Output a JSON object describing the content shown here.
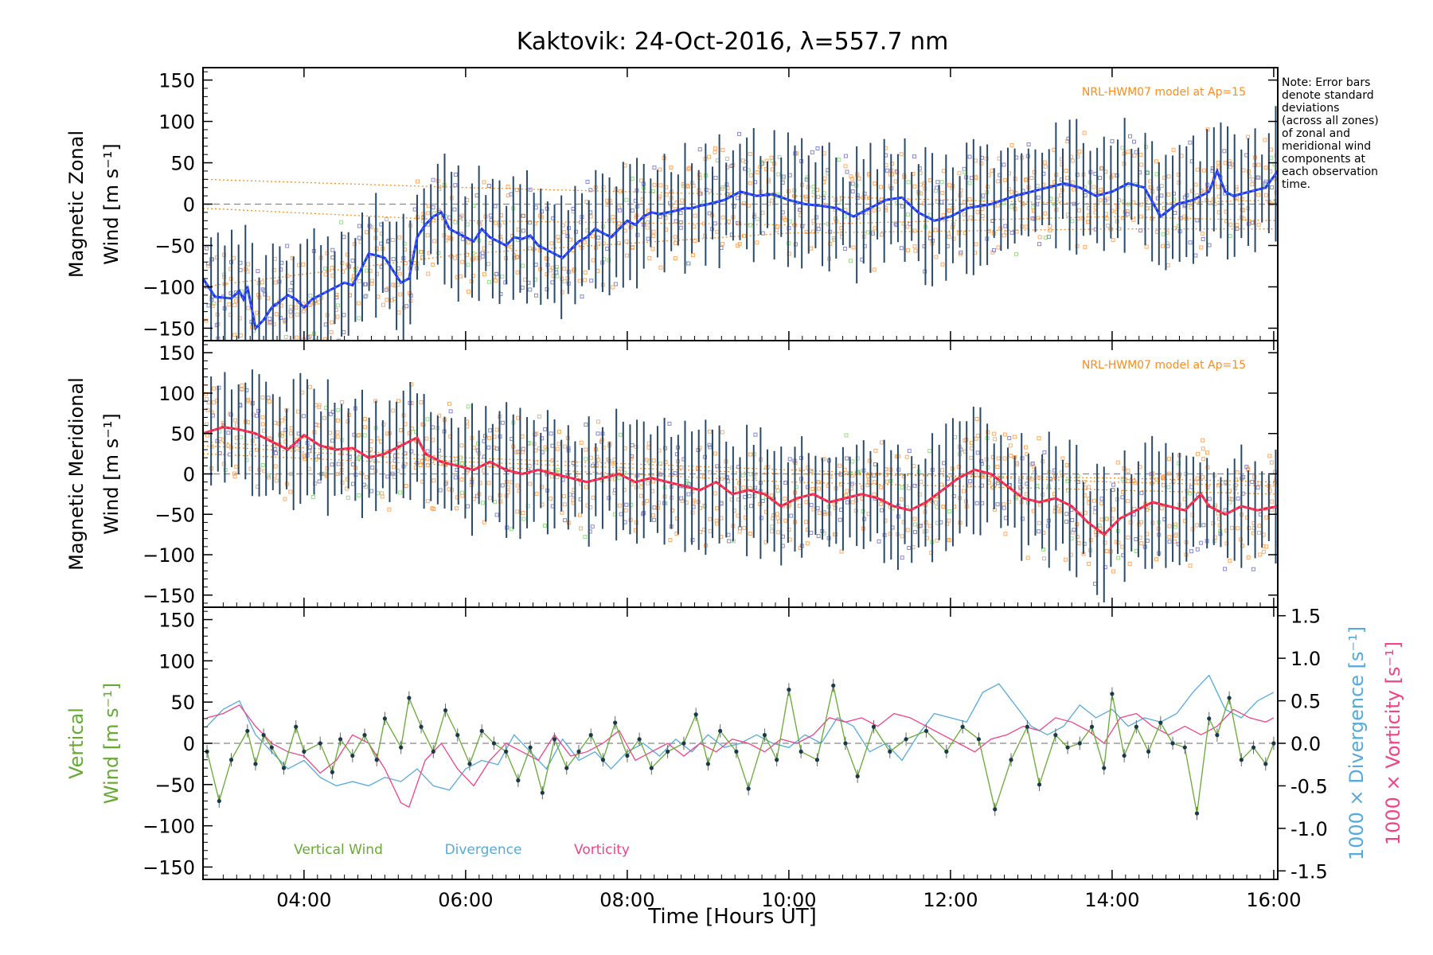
{
  "title": "Kaktovik: 24-Oct-2016, λ=557.7 nm",
  "note": [
    "Note: Error bars",
    "denote standard",
    "deviations",
    "(across all zones)",
    "of zonal and",
    "meridional wind",
    "components at",
    "each observation",
    "time."
  ],
  "model_label": "NRL-HWM07 model at Ap=15",
  "xlabel": "Time [Hours UT]",
  "colors": {
    "zonal_mean": "#2233ee",
    "zonal_mean_light": "#44aaee",
    "meridional_mean": "#ee2244",
    "meridional_mean_light": "#ff6688",
    "errorbar": "#2a4a6a",
    "model": "#ff8c1a",
    "scatter_orange": "#ffaa66",
    "scatter_blue": "#8888cc",
    "scatter_green": "#99dd88",
    "vertical": "#66aa33",
    "divergence": "#55aadd",
    "vorticity": "#ee4488",
    "zero_line": "#888888"
  },
  "chart_data": [
    {
      "type": "line",
      "panel": "zonal",
      "ylabel_lines": [
        "Magnetic Zonal",
        "Wind [m s⁻¹]"
      ],
      "xlim": [
        2.75,
        16.05
      ],
      "ylim": [
        -165,
        165
      ],
      "x_ticks": [
        4,
        6,
        8,
        10,
        12,
        14,
        16
      ],
      "y_ticks": [
        -150,
        -100,
        -50,
        0,
        50,
        100,
        150
      ],
      "series": [
        {
          "kind": "mean_wind",
          "x": [
            2.75,
            2.9,
            3.1,
            3.2,
            3.25,
            3.3,
            3.4,
            3.5,
            3.6,
            3.7,
            3.8,
            3.9,
            4.0,
            4.1,
            4.2,
            4.3,
            4.4,
            4.5,
            4.6,
            4.7,
            4.8,
            4.9,
            5.0,
            5.1,
            5.2,
            5.3,
            5.4,
            5.5,
            5.6,
            5.7,
            5.8,
            5.9,
            6.0,
            6.1,
            6.2,
            6.3,
            6.4,
            6.5,
            6.6,
            6.7,
            6.8,
            6.9,
            7.0,
            7.1,
            7.2,
            7.3,
            7.4,
            7.5,
            7.6,
            7.7,
            7.8,
            7.9,
            8.0,
            8.1,
            8.2,
            8.3,
            8.4,
            8.5,
            8.6,
            8.7,
            8.8,
            8.9,
            9.0,
            9.2,
            9.4,
            9.6,
            9.8,
            10.0,
            10.2,
            10.4,
            10.6,
            10.8,
            11.0,
            11.2,
            11.4,
            11.6,
            11.8,
            12.0,
            12.1,
            12.2,
            12.5,
            12.8,
            13.0,
            13.2,
            13.4,
            13.6,
            13.8,
            14.0,
            14.2,
            14.4,
            14.6,
            14.8,
            15.0,
            15.1,
            15.2,
            15.3,
            15.4,
            15.5,
            15.7,
            15.9,
            16.05
          ],
          "y": [
            -90,
            -112,
            -114,
            -105,
            -115,
            -100,
            -150,
            -140,
            -125,
            -118,
            -110,
            -115,
            -125,
            -115,
            -110,
            -105,
            -100,
            -95,
            -98,
            -80,
            -60,
            -62,
            -65,
            -80,
            -95,
            -90,
            -40,
            -25,
            -15,
            -10,
            -30,
            -35,
            -40,
            -45,
            -30,
            -40,
            -45,
            -50,
            -40,
            -42,
            -38,
            -50,
            -55,
            -60,
            -65,
            -55,
            -45,
            -40,
            -30,
            -35,
            -40,
            -30,
            -20,
            -25,
            -15,
            -10,
            -12,
            -10,
            -8,
            -5,
            -5,
            -2,
            0,
            5,
            15,
            10,
            12,
            5,
            0,
            -2,
            -5,
            -15,
            -5,
            5,
            8,
            -10,
            -20,
            -15,
            -10,
            -5,
            0,
            10,
            15,
            20,
            25,
            20,
            10,
            15,
            25,
            20,
            -15,
            0,
            5,
            10,
            15,
            40,
            15,
            10,
            15,
            20,
            40
          ]
        },
        {
          "kind": "model_lines",
          "lines": [
            {
              "x": [
                2.75,
                6,
                10,
                14,
                16.05
              ],
              "y": [
                30,
                20,
                10,
                0,
                5
              ]
            },
            {
              "x": [
                2.75,
                6,
                10,
                14,
                16.05
              ],
              "y": [
                -5,
                -20,
                -25,
                -15,
                -20
              ]
            },
            {
              "x": [
                2.75,
                6,
                10,
                14,
                16.05
              ],
              "y": [
                -100,
                -60,
                -35,
                -30,
                -30
              ]
            }
          ]
        }
      ]
    },
    {
      "type": "line",
      "panel": "meridional",
      "ylabel_lines": [
        "Magnetic Meridional",
        "Wind [m s⁻¹]"
      ],
      "xlim": [
        2.75,
        16.05
      ],
      "ylim": [
        -165,
        165
      ],
      "x_ticks": [
        4,
        6,
        8,
        10,
        12,
        14,
        16
      ],
      "y_ticks": [
        -150,
        -100,
        -50,
        0,
        50,
        100,
        150
      ],
      "series": [
        {
          "kind": "mean_wind",
          "x": [
            2.75,
            3.0,
            3.2,
            3.4,
            3.6,
            3.8,
            4.0,
            4.2,
            4.4,
            4.6,
            4.8,
            5.0,
            5.2,
            5.4,
            5.5,
            5.7,
            5.9,
            6.1,
            6.3,
            6.5,
            6.7,
            6.9,
            7.1,
            7.3,
            7.5,
            7.7,
            7.9,
            8.1,
            8.3,
            8.5,
            8.7,
            8.9,
            9.1,
            9.3,
            9.5,
            9.7,
            9.9,
            10.1,
            10.3,
            10.5,
            10.7,
            10.9,
            11.1,
            11.3,
            11.5,
            11.7,
            11.9,
            12.1,
            12.3,
            12.5,
            12.7,
            12.9,
            13.1,
            13.3,
            13.5,
            13.7,
            13.9,
            14.1,
            14.3,
            14.5,
            14.7,
            14.9,
            15.1,
            15.2,
            15.4,
            15.6,
            15.8,
            16.05
          ],
          "y": [
            50,
            58,
            55,
            50,
            40,
            30,
            48,
            35,
            30,
            32,
            20,
            25,
            35,
            45,
            25,
            15,
            10,
            5,
            15,
            5,
            0,
            5,
            0,
            -5,
            -10,
            -5,
            0,
            -10,
            -5,
            -10,
            -15,
            -20,
            -10,
            -25,
            -20,
            -25,
            -40,
            -30,
            -25,
            -35,
            -30,
            -25,
            -30,
            -40,
            -45,
            -35,
            -20,
            -5,
            5,
            0,
            -15,
            -30,
            -35,
            -30,
            -40,
            -60,
            -75,
            -55,
            -45,
            -35,
            -40,
            -45,
            -25,
            -40,
            -50,
            -40,
            -45,
            -40
          ]
        },
        {
          "kind": "model_lines",
          "lines": [
            {
              "x": [
                2.75,
                6,
                10,
                14,
                16.05
              ],
              "y": [
                40,
                20,
                5,
                -10,
                -15
              ]
            },
            {
              "x": [
                2.75,
                6,
                10,
                14,
                16.05
              ],
              "y": [
                25,
                10,
                -10,
                -20,
                -25
              ]
            },
            {
              "x": [
                2.75,
                6,
                10,
                14,
                16.05
              ],
              "y": [
                35,
                15,
                0,
                -5,
                -10
              ]
            }
          ]
        }
      ]
    },
    {
      "type": "line",
      "panel": "vertical",
      "ylabel_lines": [
        "Vertical",
        "Wind [m s⁻¹]"
      ],
      "right_ylabel_lines": [
        "1000 × Vorticity [s⁻¹]",
        "1000 × Divergence [s⁻¹]"
      ],
      "xlim": [
        2.75,
        16.05
      ],
      "ylim": [
        -165,
        165
      ],
      "right_ylim": [
        -1.6,
        1.6
      ],
      "x_ticks": [
        4,
        6,
        8,
        10,
        12,
        14,
        16
      ],
      "x_tick_labels": [
        "04:00",
        "06:00",
        "08:00",
        "10:00",
        "12:00",
        "14:00",
        "16:00"
      ],
      "y_ticks": [
        -150,
        -100,
        -50,
        0,
        50,
        100,
        150
      ],
      "right_y_ticks": [
        -1.5,
        -1.0,
        -0.5,
        0.0,
        0.5,
        1.0,
        1.5
      ],
      "legend": [
        "Vertical Wind",
        "Divergence",
        "Vorticity"
      ],
      "series": [
        {
          "name": "Vertical Wind",
          "x": [
            2.8,
            2.95,
            3.1,
            3.3,
            3.4,
            3.5,
            3.6,
            3.75,
            3.9,
            4.0,
            4.2,
            4.35,
            4.45,
            4.6,
            4.75,
            4.9,
            5.0,
            5.2,
            5.3,
            5.45,
            5.6,
            5.75,
            5.9,
            6.05,
            6.2,
            6.35,
            6.5,
            6.65,
            6.8,
            6.95,
            7.1,
            7.25,
            7.4,
            7.55,
            7.7,
            7.85,
            8.0,
            8.15,
            8.3,
            8.5,
            8.7,
            8.85,
            9.0,
            9.15,
            9.35,
            9.5,
            9.7,
            9.85,
            10.0,
            10.15,
            10.35,
            10.55,
            10.7,
            10.85,
            11.05,
            11.25,
            11.45,
            11.7,
            11.95,
            12.15,
            12.35,
            12.55,
            12.75,
            12.95,
            13.1,
            13.3,
            13.45,
            13.6,
            13.75,
            13.9,
            14.0,
            14.15,
            14.3,
            14.45,
            14.6,
            14.75,
            14.9,
            15.05,
            15.2,
            15.3,
            15.45,
            15.6,
            15.75,
            15.9,
            16.0
          ],
          "y": [
            -10,
            -70,
            -20,
            15,
            -25,
            10,
            -5,
            -30,
            20,
            -10,
            0,
            -35,
            5,
            -15,
            10,
            -20,
            30,
            -5,
            55,
            20,
            -10,
            40,
            10,
            -25,
            15,
            0,
            -10,
            -45,
            -5,
            -60,
            5,
            -30,
            -10,
            10,
            -20,
            25,
            -15,
            5,
            -30,
            -10,
            0,
            35,
            -25,
            15,
            -10,
            -55,
            10,
            -20,
            65,
            -10,
            -20,
            70,
            0,
            -40,
            20,
            -10,
            5,
            15,
            -10,
            20,
            5,
            -80,
            -20,
            20,
            -50,
            10,
            -5,
            0,
            20,
            -30,
            60,
            -15,
            20,
            -10,
            25,
            0,
            -5,
            -85,
            30,
            10,
            55,
            -20,
            -5,
            -25,
            0
          ]
        },
        {
          "name": "Divergence",
          "x": [
            2.8,
            3.0,
            3.2,
            3.4,
            3.6,
            3.8,
            4.0,
            4.2,
            4.4,
            4.6,
            4.8,
            5.0,
            5.2,
            5.4,
            5.6,
            5.8,
            6.0,
            6.2,
            6.4,
            6.6,
            6.8,
            7.0,
            7.2,
            7.4,
            7.6,
            7.8,
            8.0,
            8.2,
            8.4,
            8.6,
            8.8,
            9.0,
            9.2,
            9.4,
            9.6,
            9.8,
            10.0,
            10.2,
            10.4,
            10.6,
            10.8,
            11.0,
            11.2,
            11.4,
            11.6,
            11.8,
            12.0,
            12.2,
            12.4,
            12.6,
            12.8,
            13.0,
            13.2,
            13.4,
            13.6,
            13.8,
            14.0,
            14.2,
            14.4,
            14.6,
            14.8,
            15.0,
            15.2,
            15.4,
            15.6,
            15.8,
            16.0
          ],
          "y": [
            0.2,
            0.4,
            0.5,
            0.1,
            -0.1,
            -0.3,
            -0.2,
            -0.4,
            -0.5,
            -0.45,
            -0.5,
            -0.4,
            -0.45,
            -0.3,
            -0.5,
            -0.55,
            -0.3,
            -0.2,
            -0.25,
            0.1,
            -0.1,
            -0.3,
            0.05,
            -0.2,
            -0.1,
            -0.3,
            -0.1,
            0.0,
            -0.15,
            0.05,
            -0.1,
            0.1,
            -0.05,
            0.0,
            0.1,
            0.0,
            -0.05,
            0.1,
            0.0,
            0.3,
            0.2,
            -0.1,
            0.0,
            -0.2,
            0.1,
            0.35,
            0.3,
            0.25,
            0.6,
            0.7,
            0.45,
            0.2,
            0.1,
            0.2,
            0.45,
            0.3,
            0.4,
            0.2,
            0.3,
            0.25,
            0.35,
            0.6,
            0.8,
            0.4,
            0.3,
            0.5,
            0.6
          ]
        },
        {
          "name": "Vorticity",
          "x": [
            2.8,
            3.0,
            3.2,
            3.4,
            3.6,
            3.8,
            4.0,
            4.2,
            4.4,
            4.6,
            4.8,
            5.0,
            5.2,
            5.3,
            5.5,
            5.7,
            5.9,
            6.1,
            6.3,
            6.5,
            6.7,
            6.9,
            7.1,
            7.3,
            7.5,
            7.7,
            7.9,
            8.1,
            8.3,
            8.5,
            8.7,
            8.9,
            9.1,
            9.3,
            9.5,
            9.7,
            9.9,
            10.1,
            10.3,
            10.5,
            10.7,
            10.9,
            11.1,
            11.3,
            11.5,
            11.7,
            11.9,
            12.1,
            12.3,
            12.5,
            12.7,
            12.9,
            13.1,
            13.3,
            13.5,
            13.7,
            13.9,
            14.1,
            14.3,
            14.5,
            14.7,
            14.9,
            15.1,
            15.3,
            15.5,
            15.7,
            15.9,
            16.0
          ],
          "y": [
            0.3,
            0.35,
            0.45,
            0.2,
            0.0,
            -0.1,
            -0.15,
            -0.35,
            -0.2,
            0.1,
            0.0,
            -0.3,
            -0.7,
            -0.75,
            -0.2,
            0.0,
            -0.3,
            -0.5,
            -0.2,
            0.0,
            -0.1,
            -0.2,
            0.1,
            -0.15,
            -0.1,
            0.0,
            0.15,
            -0.2,
            -0.1,
            0.0,
            -0.15,
            0.0,
            -0.1,
            0.05,
            0.0,
            -0.1,
            0.05,
            0.0,
            0.1,
            0.3,
            0.25,
            0.3,
            0.2,
            0.35,
            0.3,
            0.2,
            0.1,
            0.0,
            -0.1,
            0.05,
            0.1,
            0.2,
            0.15,
            0.3,
            0.25,
            0.15,
            0.0,
            0.3,
            0.35,
            0.2,
            0.1,
            0.2,
            0.1,
            0.2,
            0.4,
            0.3,
            0.25,
            0.3
          ]
        }
      ]
    }
  ]
}
